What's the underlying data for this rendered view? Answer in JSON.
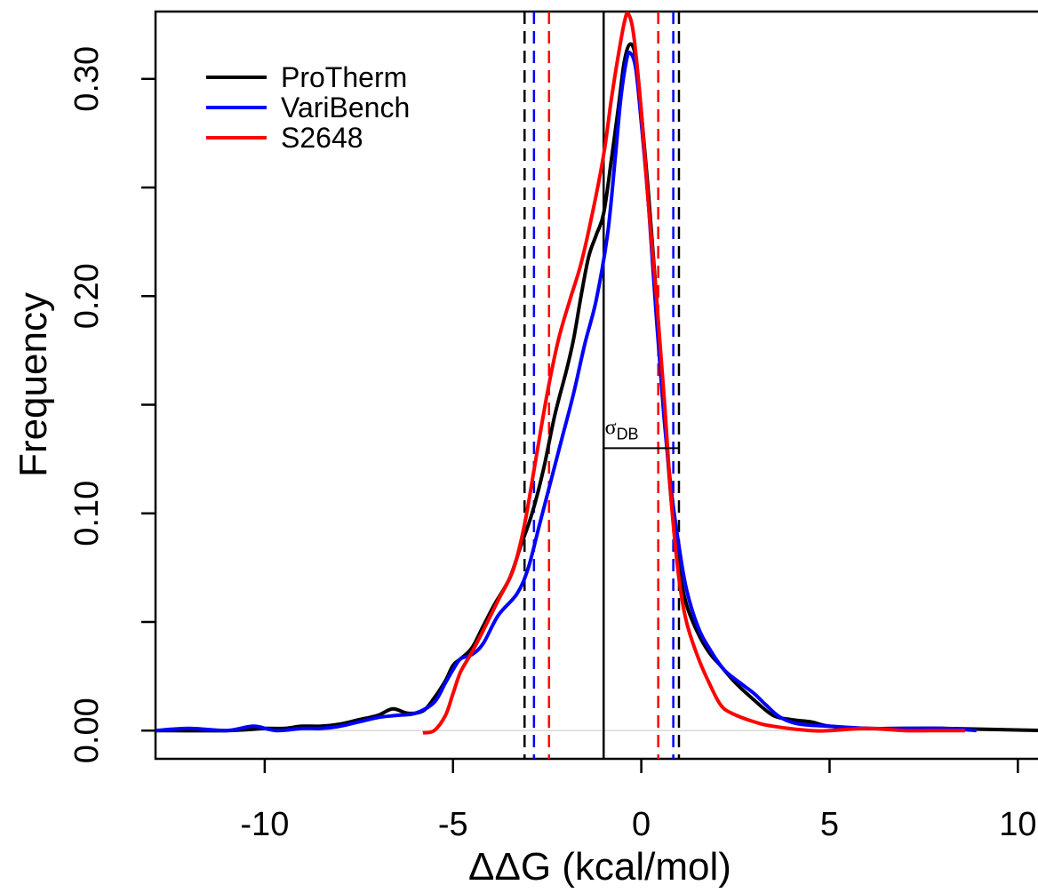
{
  "chart_data": {
    "type": "line",
    "title": "",
    "xlabel": "ΔΔG (kcal/mol)",
    "ylabel": "Frequency",
    "xlim": [
      -12.9,
      10.7
    ],
    "ylim": [
      -0.013,
      0.331
    ],
    "xticks": [
      -10,
      -5,
      0,
      5,
      10
    ],
    "xtick_labels": [
      "-10",
      "-5",
      "0",
      "5",
      "10"
    ],
    "yticks": [
      0.0,
      0.05,
      0.1,
      0.15,
      0.2,
      0.25,
      0.3
    ],
    "ytick_labels": [
      "0.00",
      "",
      "0.10",
      "",
      "0.20",
      "",
      "0.30"
    ],
    "grid": false,
    "legend": {
      "position": "top-left"
    },
    "series": [
      {
        "name": "ProTherm",
        "color": "#000000",
        "points": [
          [
            -12.9,
            0.0
          ],
          [
            -11,
            0.0
          ],
          [
            -10,
            0.001
          ],
          [
            -9.5,
            0.001
          ],
          [
            -9,
            0.002
          ],
          [
            -8.5,
            0.002
          ],
          [
            -8,
            0.003
          ],
          [
            -7.5,
            0.005
          ],
          [
            -7,
            0.007
          ],
          [
            -6.6,
            0.01
          ],
          [
            -6.2,
            0.008
          ],
          [
            -5.8,
            0.009
          ],
          [
            -5.5,
            0.015
          ],
          [
            -5.2,
            0.023
          ],
          [
            -5.0,
            0.03
          ],
          [
            -4.8,
            0.033
          ],
          [
            -4.5,
            0.038
          ],
          [
            -4.2,
            0.048
          ],
          [
            -3.9,
            0.058
          ],
          [
            -3.5,
            0.07
          ],
          [
            -3.2,
            0.085
          ],
          [
            -2.9,
            0.1
          ],
          [
            -2.6,
            0.12
          ],
          [
            -2.3,
            0.145
          ],
          [
            -2.0,
            0.165
          ],
          [
            -1.8,
            0.18
          ],
          [
            -1.6,
            0.2
          ],
          [
            -1.4,
            0.218
          ],
          [
            -1.2,
            0.228
          ],
          [
            -1.0,
            0.238
          ],
          [
            -0.8,
            0.262
          ],
          [
            -0.6,
            0.288
          ],
          [
            -0.45,
            0.308
          ],
          [
            -0.3,
            0.316
          ],
          [
            -0.15,
            0.31
          ],
          [
            0.0,
            0.285
          ],
          [
            0.2,
            0.245
          ],
          [
            0.4,
            0.2
          ],
          [
            0.6,
            0.15
          ],
          [
            0.8,
            0.105
          ],
          [
            1.0,
            0.075
          ],
          [
            1.2,
            0.058
          ],
          [
            1.5,
            0.045
          ],
          [
            1.8,
            0.036
          ],
          [
            2.1,
            0.03
          ],
          [
            2.5,
            0.022
          ],
          [
            3.0,
            0.014
          ],
          [
            3.5,
            0.007
          ],
          [
            4.0,
            0.005
          ],
          [
            4.5,
            0.004
          ],
          [
            5.0,
            0.002
          ],
          [
            6.0,
            0.001
          ],
          [
            7.0,
            0.001
          ],
          [
            8.0,
            0.001
          ],
          [
            10.7,
            0.0
          ]
        ]
      },
      {
        "name": "VariBench",
        "color": "#0000ff",
        "points": [
          [
            -12.9,
            0.0
          ],
          [
            -12,
            0.001
          ],
          [
            -11,
            0.0
          ],
          [
            -10.3,
            0.002
          ],
          [
            -9.7,
            0.0
          ],
          [
            -9,
            0.001
          ],
          [
            -8.5,
            0.001
          ],
          [
            -8,
            0.002
          ],
          [
            -7.5,
            0.004
          ],
          [
            -7,
            0.006
          ],
          [
            -6.5,
            0.007
          ],
          [
            -6.0,
            0.008
          ],
          [
            -5.5,
            0.013
          ],
          [
            -5.2,
            0.022
          ],
          [
            -5.0,
            0.028
          ],
          [
            -4.8,
            0.033
          ],
          [
            -4.5,
            0.035
          ],
          [
            -4.2,
            0.04
          ],
          [
            -3.8,
            0.053
          ],
          [
            -3.3,
            0.063
          ],
          [
            -3.0,
            0.075
          ],
          [
            -2.7,
            0.095
          ],
          [
            -2.4,
            0.115
          ],
          [
            -2.1,
            0.135
          ],
          [
            -1.8,
            0.155
          ],
          [
            -1.5,
            0.178
          ],
          [
            -1.2,
            0.198
          ],
          [
            -0.9,
            0.228
          ],
          [
            -0.7,
            0.262
          ],
          [
            -0.55,
            0.29
          ],
          [
            -0.4,
            0.308
          ],
          [
            -0.3,
            0.312
          ],
          [
            -0.15,
            0.305
          ],
          [
            0.0,
            0.28
          ],
          [
            0.2,
            0.24
          ],
          [
            0.4,
            0.19
          ],
          [
            0.6,
            0.145
          ],
          [
            0.8,
            0.11
          ],
          [
            1.0,
            0.085
          ],
          [
            1.2,
            0.065
          ],
          [
            1.5,
            0.048
          ],
          [
            1.8,
            0.038
          ],
          [
            2.2,
            0.028
          ],
          [
            2.7,
            0.021
          ],
          [
            3.0,
            0.017
          ],
          [
            3.3,
            0.012
          ],
          [
            3.7,
            0.006
          ],
          [
            4.2,
            0.003
          ],
          [
            5.0,
            0.002
          ],
          [
            6.0,
            0.001
          ],
          [
            7.0,
            0.001
          ],
          [
            8.0,
            0.001
          ],
          [
            8.9,
            0.0
          ]
        ]
      },
      {
        "name": "S2648",
        "color": "#ff0000",
        "points": [
          [
            -5.8,
            -0.001
          ],
          [
            -5.5,
            0.0
          ],
          [
            -5.2,
            0.007
          ],
          [
            -5.0,
            0.017
          ],
          [
            -4.8,
            0.027
          ],
          [
            -4.5,
            0.036
          ],
          [
            -4.2,
            0.046
          ],
          [
            -3.8,
            0.06
          ],
          [
            -3.4,
            0.074
          ],
          [
            -3.1,
            0.095
          ],
          [
            -2.8,
            0.125
          ],
          [
            -2.5,
            0.155
          ],
          [
            -2.2,
            0.18
          ],
          [
            -1.9,
            0.198
          ],
          [
            -1.6,
            0.215
          ],
          [
            -1.3,
            0.238
          ],
          [
            -1.0,
            0.265
          ],
          [
            -0.8,
            0.29
          ],
          [
            -0.6,
            0.312
          ],
          [
            -0.45,
            0.326
          ],
          [
            -0.35,
            0.33
          ],
          [
            -0.2,
            0.32
          ],
          [
            0.0,
            0.285
          ],
          [
            0.2,
            0.24
          ],
          [
            0.4,
            0.2
          ],
          [
            0.6,
            0.155
          ],
          [
            0.8,
            0.105
          ],
          [
            1.0,
            0.07
          ],
          [
            1.2,
            0.05
          ],
          [
            1.5,
            0.034
          ],
          [
            1.8,
            0.022
          ],
          [
            2.1,
            0.012
          ],
          [
            2.4,
            0.008
          ],
          [
            3.0,
            0.004
          ],
          [
            3.5,
            0.002
          ],
          [
            4.5,
            0.0
          ],
          [
            5.0,
            0.0
          ],
          [
            6.0,
            0.001
          ],
          [
            7.0,
            0.0
          ],
          [
            8.0,
            0.0
          ],
          [
            8.6,
            0.0
          ]
        ]
      }
    ],
    "reference_lines": [
      {
        "x": -1.0,
        "color": "#000000",
        "style": "solid"
      },
      {
        "x": -3.1,
        "color": "#000000",
        "style": "dashed"
      },
      {
        "x": 1.0,
        "color": "#000000",
        "style": "dashed"
      },
      {
        "x": -2.85,
        "color": "#0000ff",
        "style": "dashed"
      },
      {
        "x": 0.85,
        "color": "#0000ff",
        "style": "dashed"
      },
      {
        "x": -2.45,
        "color": "#ff0000",
        "style": "dashed"
      },
      {
        "x": 0.45,
        "color": "#ff0000",
        "style": "dashed"
      }
    ],
    "annotation": {
      "label": "σ",
      "subscript": "DB",
      "x_from": -1.0,
      "x_to": 1.0,
      "y": 0.13
    }
  }
}
